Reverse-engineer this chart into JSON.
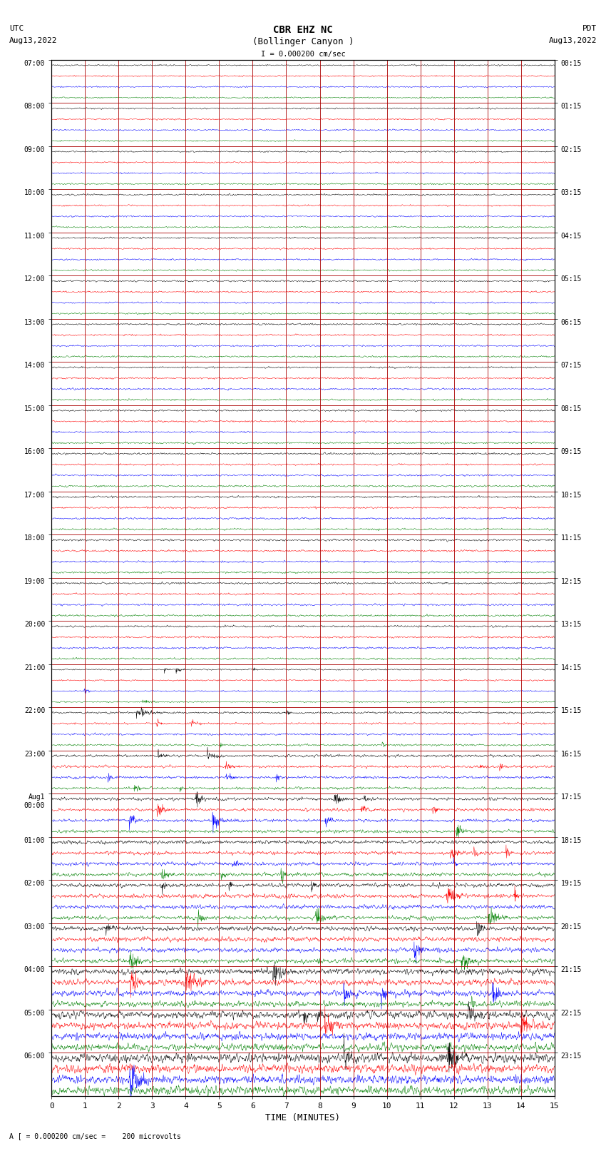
{
  "title_line1": "CBR EHZ NC",
  "title_line2": "(Bollinger Canyon )",
  "title_scale": "I = 0.000200 cm/sec",
  "left_header_1": "UTC",
  "left_header_2": "Aug13,2022",
  "right_header_1": "PDT",
  "right_header_2": "Aug13,2022",
  "footer": "A [ = 0.000200 cm/sec =    200 microvolts",
  "xlabel": "TIME (MINUTES)",
  "utc_labels": [
    "07:00",
    "08:00",
    "09:00",
    "10:00",
    "11:00",
    "12:00",
    "13:00",
    "14:00",
    "15:00",
    "16:00",
    "17:00",
    "18:00",
    "19:00",
    "20:00",
    "21:00",
    "22:00",
    "23:00",
    "Aug1\n00:00",
    "01:00",
    "02:00",
    "03:00",
    "04:00",
    "05:00",
    "06:00"
  ],
  "pdt_labels": [
    "00:15",
    "01:15",
    "02:15",
    "03:15",
    "04:15",
    "05:15",
    "06:15",
    "07:15",
    "08:15",
    "09:15",
    "10:15",
    "11:15",
    "12:15",
    "13:15",
    "14:15",
    "15:15",
    "16:15",
    "17:15",
    "18:15",
    "19:15",
    "20:15",
    "21:15",
    "22:15",
    "23:15"
  ],
  "n_rows": 24,
  "n_traces_per_row": 4,
  "trace_colors": [
    "black",
    "red",
    "blue",
    "green"
  ],
  "xlim": [
    0,
    15
  ],
  "xticks": [
    0,
    1,
    2,
    3,
    4,
    5,
    6,
    7,
    8,
    9,
    10,
    11,
    12,
    13,
    14,
    15
  ],
  "bg_color": "white",
  "grid_color": "#aa0000",
  "grid_lw": 0.6,
  "figsize": [
    8.5,
    16.13
  ],
  "dpi": 100,
  "amp_quiet": 0.012,
  "amp_medium": 0.04,
  "amp_loud": 0.09,
  "transition_medium": 14,
  "transition_loud": 20
}
